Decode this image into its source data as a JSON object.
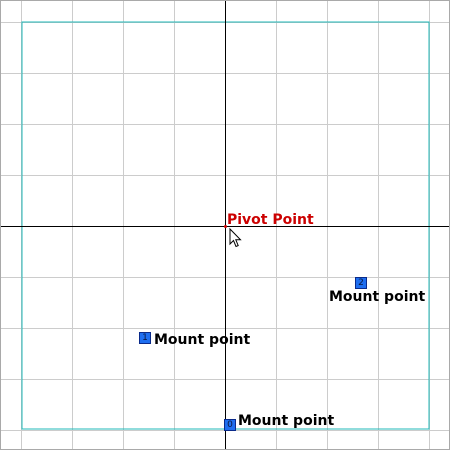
{
  "pivot": {
    "label": "Pivot Point"
  },
  "mount_points": [
    {
      "index": "0",
      "label": "Mount point"
    },
    {
      "index": "1",
      "label": "Mount point"
    },
    {
      "index": "2",
      "label": "Mount point"
    }
  ],
  "colors": {
    "grid": "#cccccc",
    "axis": "#000000",
    "boundary": "#20b8b8",
    "pivot": "#cc0000",
    "marker_fill": "#1e6ef0"
  },
  "icons": {
    "cursor": "arrow-cursor-icon"
  }
}
